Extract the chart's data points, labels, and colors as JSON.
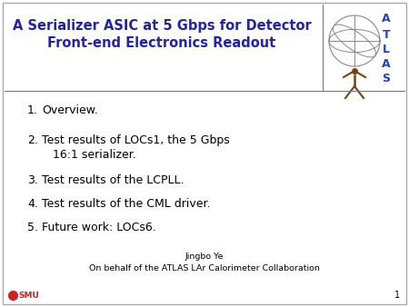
{
  "title_line1": "A Serializer ASIC at 5 Gbps for Detector",
  "title_line2": "Front-end Electronics Readout",
  "title_color": "#2222aa",
  "title_fontsize": 10.5,
  "items": [
    "Overview.",
    "Test results of LOCs1, the 5 Gbps\n   16:1 serializer.",
    "Test results of the LCPLL.",
    "Test results of the CML driver.",
    "Future work: LOCs6."
  ],
  "item_fontsize": 9.0,
  "item_color": "#000000",
  "author_line1": "Jingbo Ye",
  "author_line2": "On behalf of the ATLAS LAr Calorimeter Collaboration",
  "author_fontsize": 6.8,
  "page_number": "1",
  "bg_color": "#ffffff",
  "separator_color": "#777777",
  "smu_color": "#cc2222",
  "atlas_text_color": "#2244bb",
  "globe_color": "#888888",
  "person_color": "#7B3F10",
  "border_color": "#aaaaaa"
}
